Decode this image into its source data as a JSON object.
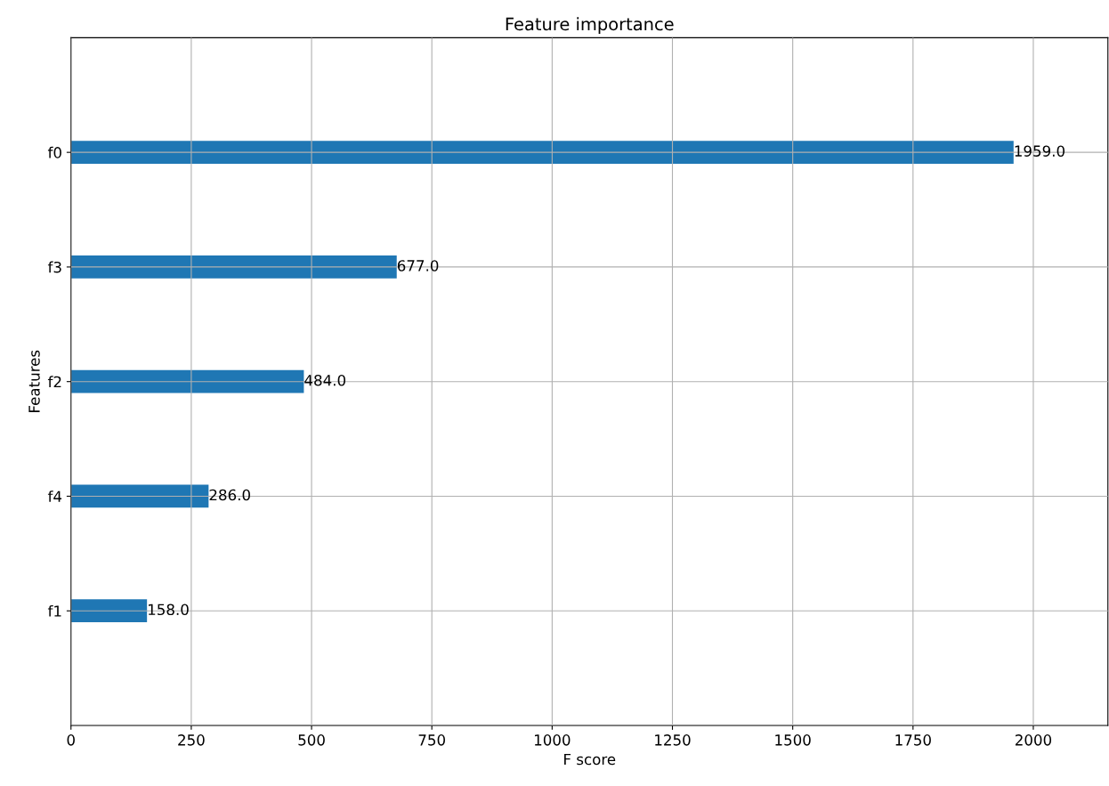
{
  "chart_data": {
    "type": "bar",
    "orientation": "horizontal",
    "title": "Feature importance",
    "xlabel": "F score",
    "ylabel": "Features",
    "categories": [
      "f0",
      "f3",
      "f2",
      "f4",
      "f1"
    ],
    "values": [
      1959,
      677,
      484,
      286,
      158
    ],
    "value_labels": [
      "1959.0",
      "677.0",
      "484.0",
      "286.0",
      "158.0"
    ],
    "color": "#1f77b4",
    "xlim": [
      0,
      2155
    ],
    "xticks": [
      0,
      250,
      500,
      750,
      1000,
      1250,
      1500,
      1750,
      2000
    ],
    "grid": true
  }
}
